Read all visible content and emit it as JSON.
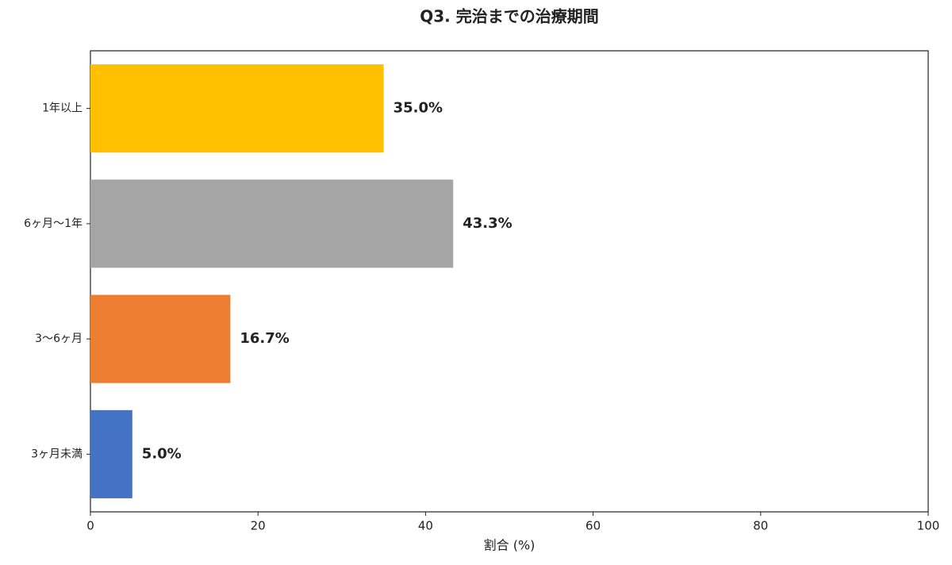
{
  "chart_data": {
    "type": "barh",
    "title": "Q3. 完治までの治療期間",
    "xlabel": "割合 (%)",
    "categories": [
      "1年以上",
      "6ヶ月〜1年",
      "3〜6ヶ月",
      "3ヶ月未満"
    ],
    "values": [
      35.0,
      43.3,
      16.7,
      5.0
    ],
    "value_labels": [
      "35.0%",
      "43.3%",
      "16.7%",
      "5.0%"
    ],
    "colors": [
      "#ffc000",
      "#a5a5a5",
      "#ed7d31",
      "#4472c4"
    ],
    "xlim": [
      0,
      100
    ],
    "xticks": [
      0,
      20,
      40,
      60,
      80,
      100
    ],
    "grid": false
  }
}
